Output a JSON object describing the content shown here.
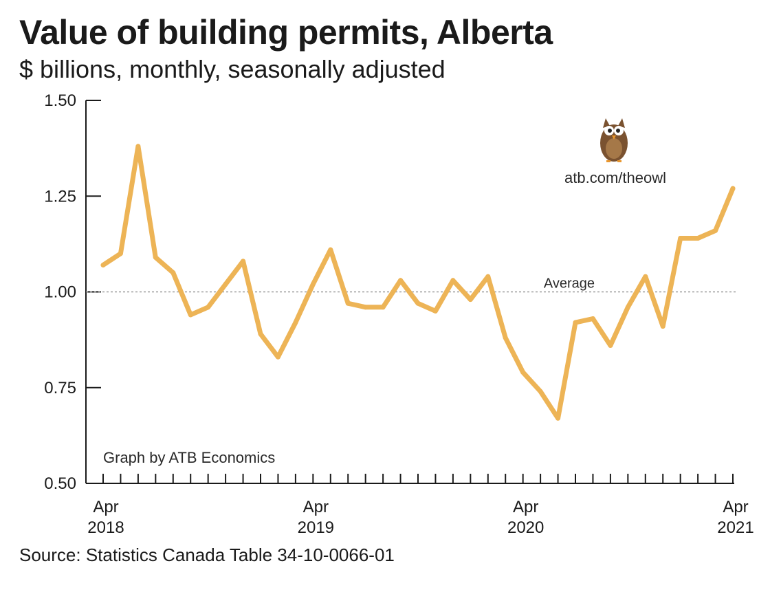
{
  "header": {
    "title": "Value of building permits, Alberta",
    "subtitle": "$ billions, monthly, seasonally adjusted"
  },
  "footer": {
    "source": "Source: Statistics Canada Table 34-10-0066-01"
  },
  "annotations": {
    "credit": "Graph by ATB Economics",
    "website": "atb.com/theowl",
    "average_label": "Average",
    "owl_icon": "owl-mascot-icon"
  },
  "colors": {
    "line": "#EDB456",
    "axis": "#1a1a1a",
    "average_line": "#9a9a9a",
    "text": "#1a1a1a"
  },
  "chart_data": {
    "type": "line",
    "title": "Value of building permits, Alberta",
    "subtitle": "$ billions, monthly, seasonally adjusted",
    "x_tick_labels": [
      {
        "month": "Apr",
        "year": "2018"
      },
      {
        "month": "Apr",
        "year": "2019"
      },
      {
        "month": "Apr",
        "year": "2020"
      },
      {
        "month": "Apr",
        "year": "2021"
      }
    ],
    "x": [
      "2018-04",
      "2018-05",
      "2018-06",
      "2018-07",
      "2018-08",
      "2018-09",
      "2018-10",
      "2018-11",
      "2018-12",
      "2019-01",
      "2019-02",
      "2019-03",
      "2019-04",
      "2019-05",
      "2019-06",
      "2019-07",
      "2019-08",
      "2019-09",
      "2019-10",
      "2019-11",
      "2019-12",
      "2020-01",
      "2020-02",
      "2020-03",
      "2020-04",
      "2020-05",
      "2020-06",
      "2020-07",
      "2020-08",
      "2020-09",
      "2020-10",
      "2020-11",
      "2020-12",
      "2021-01",
      "2021-02",
      "2021-03",
      "2021-04"
    ],
    "series": [
      {
        "values": [
          1.07,
          1.1,
          1.38,
          1.09,
          1.05,
          0.94,
          0.96,
          1.02,
          1.08,
          0.89,
          0.83,
          0.92,
          1.02,
          1.11,
          0.97,
          0.96,
          0.96,
          1.03,
          0.97,
          0.95,
          1.03,
          0.98,
          1.04,
          0.88,
          0.79,
          0.74,
          0.67,
          0.92,
          0.93,
          0.86,
          0.96,
          1.04,
          0.91,
          1.14,
          1.14,
          1.16,
          1.27
        ]
      }
    ],
    "average": 1.0,
    "ylim": [
      0.5,
      1.5
    ],
    "yticks": [
      "0.50",
      "0.75",
      "1.00",
      "1.25",
      "1.50"
    ],
    "grid": false
  }
}
